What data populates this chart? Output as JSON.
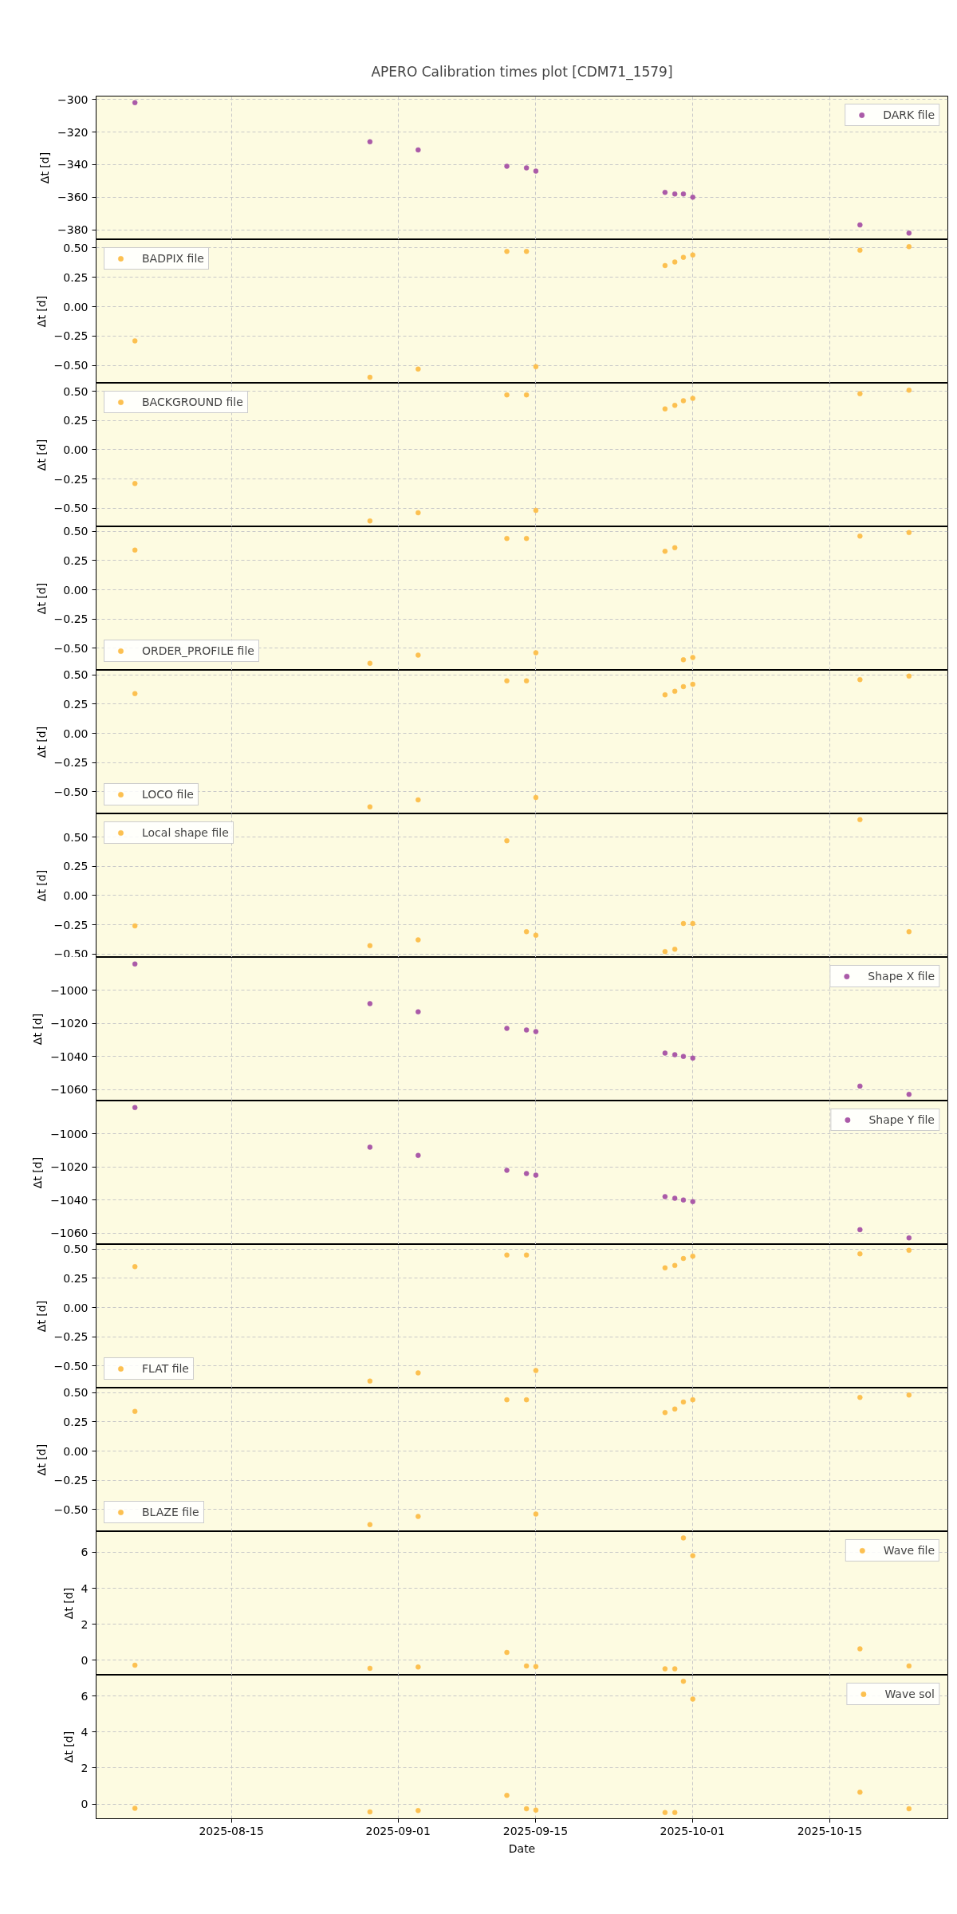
{
  "chart_data": [
    {
      "type": "scatter",
      "title": "APERO Calibration times plot [CDM71_1579]",
      "ylabel": "Δt [d]",
      "x": [
        "2025-08-05T04:00",
        "2025-08-29T03:00",
        "2025-09-03T01:00",
        "2025-09-12T02:00",
        "2025-09-14T02:00",
        "2025-09-15T01:00",
        "2025-09-28T05:00",
        "2025-09-29T05:00",
        "2025-09-30T02:00",
        "2025-10-01T01:00",
        "2025-10-18T02:00",
        "2025-10-23T02:00"
      ],
      "xlim": [
        "2025-08-01T05:00",
        "2025-10-27T01:00"
      ],
      "xticks": [
        "2025-08-15",
        "2025-09-01",
        "2025-09-15",
        "2025-10-01",
        "2025-10-15"
      ],
      "ylim": [
        -386,
        -298
      ],
      "yticks": [
        {
          "value": -380,
          "label": "−380"
        },
        {
          "value": -360,
          "label": "−360"
        },
        {
          "value": -340,
          "label": "−340"
        },
        {
          "value": -320,
          "label": "−320"
        },
        {
          "value": -300,
          "label": "−300"
        }
      ],
      "series": [
        {
          "name": "DARK file",
          "color": "#aa5aa8",
          "values": [
            -302,
            -326,
            -331,
            -341,
            -342,
            -344,
            -357,
            -358,
            -358,
            -360,
            -377,
            -382
          ]
        }
      ],
      "legend": "top right",
      "grid": true,
      "marker": "circle",
      "tick_labels": "y"
    },
    {
      "type": "scatter",
      "ylabel": "Δt [d]",
      "x": [
        "2025-08-05T04:00",
        "2025-08-29T03:00",
        "2025-09-03T01:00",
        "2025-09-12T02:00",
        "2025-09-14T02:00",
        "2025-09-15T01:00",
        "2025-09-28T05:00",
        "2025-09-29T05:00",
        "2025-09-30T02:00",
        "2025-10-01T01:00",
        "2025-10-18T02:00",
        "2025-10-23T02:00"
      ],
      "xlim": [
        "2025-08-01T05:00",
        "2025-10-27T01:00"
      ],
      "xticks": [
        "2025-08-15",
        "2025-09-01",
        "2025-09-15",
        "2025-10-01",
        "2025-10-15"
      ],
      "ylim": [
        -0.65,
        0.57
      ],
      "yticks": [
        {
          "value": -0.5,
          "label": "−0.50"
        },
        {
          "value": -0.25,
          "label": "−0.25"
        },
        {
          "value": 0,
          "label": "0.00"
        },
        {
          "value": 0.25,
          "label": "0.25"
        },
        {
          "value": 0.5,
          "label": "0.50"
        }
      ],
      "series": [
        {
          "name": "BADPIX file",
          "color": "#fcc050",
          "values": [
            -0.29,
            -0.6,
            -0.53,
            0.47,
            0.47,
            -0.51,
            0.35,
            0.38,
            0.42,
            0.44,
            0.48,
            0.51
          ]
        }
      ],
      "legend": "top left",
      "grid": true,
      "marker": "circle",
      "tick_labels": "y"
    },
    {
      "type": "scatter",
      "ylabel": "Δt [d]",
      "x": [
        "2025-08-05T04:00",
        "2025-08-29T03:00",
        "2025-09-03T01:00",
        "2025-09-12T02:00",
        "2025-09-14T02:00",
        "2025-09-15T01:00",
        "2025-09-28T05:00",
        "2025-09-29T05:00",
        "2025-09-30T02:00",
        "2025-10-01T01:00",
        "2025-10-18T02:00",
        "2025-10-23T02:00"
      ],
      "xlim": [
        "2025-08-01T05:00",
        "2025-10-27T01:00"
      ],
      "xticks": [
        "2025-08-15",
        "2025-09-01",
        "2025-09-15",
        "2025-10-01",
        "2025-10-15"
      ],
      "ylim": [
        -0.66,
        0.57
      ],
      "yticks": [
        {
          "value": -0.5,
          "label": "−0.50"
        },
        {
          "value": -0.25,
          "label": "−0.25"
        },
        {
          "value": 0,
          "label": "0.00"
        },
        {
          "value": 0.25,
          "label": "0.25"
        },
        {
          "value": 0.5,
          "label": "0.50"
        }
      ],
      "series": [
        {
          "name": "BACKGROUND file",
          "color": "#fcc050",
          "values": [
            -0.29,
            -0.61,
            -0.54,
            0.47,
            0.47,
            -0.52,
            0.35,
            0.38,
            0.42,
            0.44,
            0.48,
            0.51
          ]
        }
      ],
      "legend": "top left",
      "grid": true,
      "marker": "circle",
      "tick_labels": "y"
    },
    {
      "type": "scatter",
      "ylabel": "Δt [d]",
      "x": [
        "2025-08-05T04:00",
        "2025-08-29T03:00",
        "2025-09-03T01:00",
        "2025-09-12T02:00",
        "2025-09-14T02:00",
        "2025-09-15T01:00",
        "2025-09-28T05:00",
        "2025-09-29T05:00",
        "2025-09-30T02:00",
        "2025-10-01T01:00",
        "2025-10-18T02:00",
        "2025-10-23T02:00"
      ],
      "xlim": [
        "2025-08-01T05:00",
        "2025-10-27T01:00"
      ],
      "xticks": [
        "2025-08-15",
        "2025-09-01",
        "2025-09-15",
        "2025-10-01",
        "2025-10-15"
      ],
      "ylim": [
        -0.69,
        0.54
      ],
      "yticks": [
        {
          "value": -0.5,
          "label": "−0.50"
        },
        {
          "value": -0.25,
          "label": "−0.25"
        },
        {
          "value": 0,
          "label": "0.00"
        },
        {
          "value": 0.25,
          "label": "0.25"
        },
        {
          "value": 0.5,
          "label": "0.50"
        }
      ],
      "series": [
        {
          "name": "ORDER_PROFILE file",
          "color": "#fcc050",
          "values": [
            0.34,
            -0.63,
            -0.56,
            0.44,
            0.44,
            -0.54,
            0.33,
            0.36,
            -0.6,
            -0.58,
            0.46,
            0.49
          ]
        }
      ],
      "legend": "bottom left",
      "grid": true,
      "marker": "circle",
      "tick_labels": "y"
    },
    {
      "type": "scatter",
      "ylabel": "Δt [d]",
      "x": [
        "2025-08-05T04:00",
        "2025-08-29T03:00",
        "2025-09-03T01:00",
        "2025-09-12T02:00",
        "2025-09-14T02:00",
        "2025-09-15T01:00",
        "2025-09-28T05:00",
        "2025-09-29T05:00",
        "2025-09-30T02:00",
        "2025-10-01T01:00",
        "2025-10-18T02:00",
        "2025-10-23T02:00"
      ],
      "xlim": [
        "2025-08-01T05:00",
        "2025-10-27T01:00"
      ],
      "xticks": [
        "2025-08-15",
        "2025-09-01",
        "2025-09-15",
        "2025-10-01",
        "2025-10-15"
      ],
      "ylim": [
        -0.69,
        0.54
      ],
      "yticks": [
        {
          "value": -0.5,
          "label": "−0.50"
        },
        {
          "value": -0.25,
          "label": "−0.25"
        },
        {
          "value": 0,
          "label": "0.00"
        },
        {
          "value": 0.25,
          "label": "0.25"
        },
        {
          "value": 0.5,
          "label": "0.50"
        }
      ],
      "series": [
        {
          "name": "LOCO file",
          "color": "#fcc050",
          "values": [
            0.34,
            -0.63,
            -0.57,
            0.45,
            0.45,
            -0.55,
            0.33,
            0.36,
            0.4,
            0.42,
            0.46,
            0.49
          ]
        }
      ],
      "legend": "bottom left",
      "grid": true,
      "marker": "circle",
      "tick_labels": "y"
    },
    {
      "type": "scatter",
      "ylabel": "Δt [d]",
      "x": [
        "2025-08-05T04:00",
        "2025-08-29T03:00",
        "2025-09-03T01:00",
        "2025-09-12T02:00",
        "2025-09-14T02:00",
        "2025-09-15T01:00",
        "2025-09-28T05:00",
        "2025-09-29T05:00",
        "2025-09-30T02:00",
        "2025-10-01T01:00",
        "2025-10-18T02:00",
        "2025-10-23T02:00"
      ],
      "xlim": [
        "2025-08-01T05:00",
        "2025-10-27T01:00"
      ],
      "xticks": [
        "2025-08-15",
        "2025-09-01",
        "2025-09-15",
        "2025-10-01",
        "2025-10-15"
      ],
      "ylim": [
        -0.53,
        0.7
      ],
      "yticks": [
        {
          "value": -0.5,
          "label": "−0.50"
        },
        {
          "value": -0.25,
          "label": "−0.25"
        },
        {
          "value": 0,
          "label": "0.00"
        },
        {
          "value": 0.25,
          "label": "0.25"
        },
        {
          "value": 0.5,
          "label": "0.50"
        }
      ],
      "series": [
        {
          "name": "Local shape file",
          "color": "#fcc050",
          "values": [
            -0.26,
            -0.43,
            -0.38,
            0.47,
            -0.31,
            -0.34,
            -0.48,
            -0.46,
            -0.24,
            -0.24,
            0.65,
            -0.31
          ]
        }
      ],
      "legend": "top left",
      "grid": true,
      "marker": "circle",
      "tick_labels": "y"
    },
    {
      "type": "scatter",
      "ylabel": "Δt [d]",
      "x": [
        "2025-08-05T04:00",
        "2025-08-29T03:00",
        "2025-09-03T01:00",
        "2025-09-12T02:00",
        "2025-09-14T02:00",
        "2025-09-15T01:00",
        "2025-09-28T05:00",
        "2025-09-29T05:00",
        "2025-09-30T02:00",
        "2025-10-01T01:00",
        "2025-10-18T02:00",
        "2025-10-23T02:00"
      ],
      "xlim": [
        "2025-08-01T05:00",
        "2025-10-27T01:00"
      ],
      "xticks": [
        "2025-08-15",
        "2025-09-01",
        "2025-09-15",
        "2025-10-01",
        "2025-10-15"
      ],
      "ylim": [
        -1067,
        -980
      ],
      "yticks": [
        {
          "value": -1060,
          "label": "−1060"
        },
        {
          "value": -1040,
          "label": "−1040"
        },
        {
          "value": -1020,
          "label": "−1020"
        },
        {
          "value": -1000,
          "label": "−1000"
        }
      ],
      "series": [
        {
          "name": "Shape X file",
          "color": "#aa5aa8",
          "values": [
            -984,
            -1008,
            -1013,
            -1023,
            -1024,
            -1025,
            -1038,
            -1039,
            -1040,
            -1041,
            -1058,
            -1063
          ]
        }
      ],
      "legend": "top right",
      "grid": true,
      "marker": "circle",
      "tick_labels": "y"
    },
    {
      "type": "scatter",
      "ylabel": "Δt [d]",
      "x": [
        "2025-08-05T04:00",
        "2025-08-29T03:00",
        "2025-09-03T01:00",
        "2025-09-12T02:00",
        "2025-09-14T02:00",
        "2025-09-15T01:00",
        "2025-09-28T05:00",
        "2025-09-29T05:00",
        "2025-09-30T02:00",
        "2025-10-01T01:00",
        "2025-10-18T02:00",
        "2025-10-23T02:00"
      ],
      "xlim": [
        "2025-08-01T05:00",
        "2025-10-27T01:00"
      ],
      "xticks": [
        "2025-08-15",
        "2025-09-01",
        "2025-09-15",
        "2025-10-01",
        "2025-10-15"
      ],
      "ylim": [
        -1067,
        -980
      ],
      "yticks": [
        {
          "value": -1060,
          "label": "−1060"
        },
        {
          "value": -1040,
          "label": "−1040"
        },
        {
          "value": -1020,
          "label": "−1020"
        },
        {
          "value": -1000,
          "label": "−1000"
        }
      ],
      "series": [
        {
          "name": "Shape Y file",
          "color": "#aa5aa8",
          "values": [
            -984,
            -1008,
            -1013,
            -1022,
            -1024,
            -1025,
            -1038,
            -1039,
            -1040,
            -1041,
            -1058,
            -1063
          ]
        }
      ],
      "legend": "top right",
      "grid": true,
      "marker": "circle",
      "tick_labels": "y"
    },
    {
      "type": "scatter",
      "ylabel": "Δt [d]",
      "x": [
        "2025-08-05T04:00",
        "2025-08-29T03:00",
        "2025-09-03T01:00",
        "2025-09-12T02:00",
        "2025-09-14T02:00",
        "2025-09-15T01:00",
        "2025-09-28T05:00",
        "2025-09-29T05:00",
        "2025-09-30T02:00",
        "2025-10-01T01:00",
        "2025-10-18T02:00",
        "2025-10-23T02:00"
      ],
      "xlim": [
        "2025-08-01T05:00",
        "2025-10-27T01:00"
      ],
      "xticks": [
        "2025-08-15",
        "2025-09-01",
        "2025-09-15",
        "2025-10-01",
        "2025-10-15"
      ],
      "ylim": [
        -0.69,
        0.54
      ],
      "yticks": [
        {
          "value": -0.5,
          "label": "−0.50"
        },
        {
          "value": -0.25,
          "label": "−0.25"
        },
        {
          "value": 0,
          "label": "0.00"
        },
        {
          "value": 0.25,
          "label": "0.25"
        },
        {
          "value": 0.5,
          "label": "0.50"
        }
      ],
      "series": [
        {
          "name": "FLAT file",
          "color": "#fcc050",
          "values": [
            0.35,
            -0.63,
            -0.56,
            0.45,
            0.45,
            -0.54,
            0.34,
            0.36,
            0.42,
            0.44,
            0.46,
            0.49
          ]
        }
      ],
      "legend": "bottom left",
      "grid": true,
      "marker": "circle",
      "tick_labels": "y"
    },
    {
      "type": "scatter",
      "ylabel": "Δt [d]",
      "x": [
        "2025-08-05T04:00",
        "2025-08-29T03:00",
        "2025-09-03T01:00",
        "2025-09-12T02:00",
        "2025-09-14T02:00",
        "2025-09-15T01:00",
        "2025-09-28T05:00",
        "2025-09-29T05:00",
        "2025-09-30T02:00",
        "2025-10-01T01:00",
        "2025-10-18T02:00",
        "2025-10-23T02:00"
      ],
      "xlim": [
        "2025-08-01T05:00",
        "2025-10-27T01:00"
      ],
      "xticks": [
        "2025-08-15",
        "2025-09-01",
        "2025-09-15",
        "2025-10-01",
        "2025-10-15"
      ],
      "ylim": [
        -0.69,
        0.54
      ],
      "yticks": [
        {
          "value": -0.5,
          "label": "−0.50"
        },
        {
          "value": -0.25,
          "label": "−0.25"
        },
        {
          "value": 0,
          "label": "0.00"
        },
        {
          "value": 0.25,
          "label": "0.25"
        },
        {
          "value": 0.5,
          "label": "0.50"
        }
      ],
      "series": [
        {
          "name": "BLAZE file",
          "color": "#fcc050",
          "values": [
            0.34,
            -0.63,
            -0.56,
            0.44,
            0.44,
            -0.54,
            0.33,
            0.36,
            0.42,
            0.44,
            0.46,
            0.48
          ]
        }
      ],
      "legend": "bottom left",
      "grid": true,
      "marker": "circle",
      "tick_labels": "y"
    },
    {
      "type": "scatter",
      "ylabel": "Δt [d]",
      "x": [
        "2025-08-05T04:00",
        "2025-08-29T03:00",
        "2025-09-03T01:00",
        "2025-09-12T02:00",
        "2025-09-14T02:00",
        "2025-09-15T01:00",
        "2025-09-28T05:00",
        "2025-09-29T05:00",
        "2025-09-30T02:00",
        "2025-10-01T01:00",
        "2025-10-18T02:00",
        "2025-10-23T02:00"
      ],
      "xlim": [
        "2025-08-01T05:00",
        "2025-10-27T01:00"
      ],
      "xticks": [
        "2025-08-15",
        "2025-09-01",
        "2025-09-15",
        "2025-10-01",
        "2025-10-15"
      ],
      "ylim": [
        -0.82,
        7.15
      ],
      "yticks": [
        0,
        2,
        4,
        6
      ],
      "series": [
        {
          "name": "Wave file",
          "color": "#fcc050",
          "values": [
            -0.27,
            -0.44,
            -0.37,
            0.44,
            -0.31,
            -0.34,
            -0.47,
            -0.47,
            6.8,
            5.81,
            0.64,
            -0.31
          ]
        }
      ],
      "legend": "top right",
      "grid": true,
      "marker": "circle",
      "tick_labels": "y"
    },
    {
      "type": "scatter",
      "ylabel": "Δt [d]",
      "xlabel": "Date",
      "x": [
        "2025-08-05T04:00",
        "2025-08-29T03:00",
        "2025-09-03T01:00",
        "2025-09-12T02:00",
        "2025-09-14T02:00",
        "2025-09-15T01:00",
        "2025-09-28T05:00",
        "2025-09-29T05:00",
        "2025-09-30T02:00",
        "2025-10-01T01:00",
        "2025-10-18T02:00",
        "2025-10-23T02:00"
      ],
      "xlim": [
        "2025-08-01T05:00",
        "2025-10-27T01:00"
      ],
      "xticks": [
        "2025-08-15",
        "2025-09-01",
        "2025-09-15",
        "2025-10-01",
        "2025-10-15"
      ],
      "ylim": [
        -0.82,
        7.16
      ],
      "yticks": [
        0,
        2,
        4,
        6
      ],
      "series": [
        {
          "name": "Wave sol",
          "color": "#fcc050",
          "values": [
            -0.24,
            -0.44,
            -0.37,
            0.48,
            -0.27,
            -0.34,
            -0.48,
            -0.48,
            6.82,
            5.83,
            0.65,
            -0.27
          ]
        }
      ],
      "legend": "top right",
      "grid": true,
      "marker": "circle"
    }
  ]
}
